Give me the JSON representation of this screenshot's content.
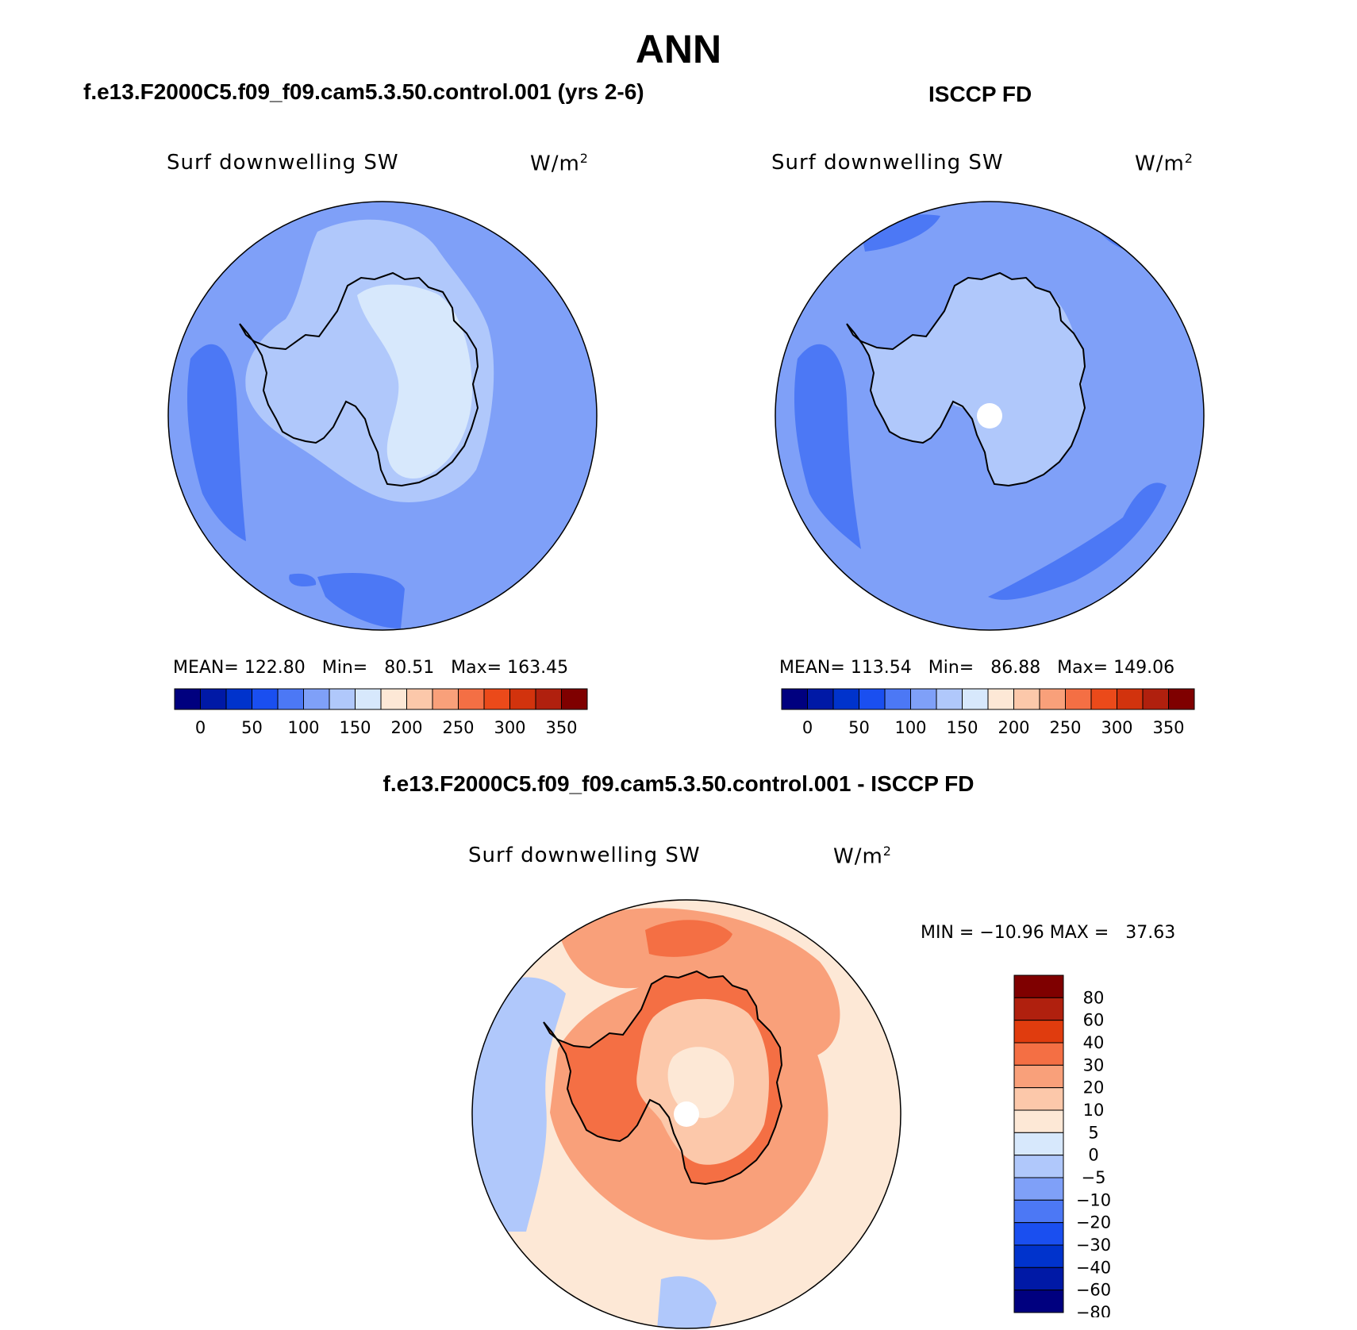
{
  "title": "ANN",
  "panels": {
    "left": {
      "subtitle": "f.e13.F2000C5.f09_f09.cam5.3.50.control.001 (yrs 2-6)",
      "variable": "Surf downwelling SW",
      "units_base": "W/m",
      "units_exp": "2",
      "stats": "MEAN= 122.80   Min=   80.51   Max= 163.45"
    },
    "right": {
      "subtitle": "ISCCP FD",
      "variable": "Surf downwelling SW",
      "units_base": "W/m",
      "units_exp": "2",
      "stats": "MEAN= 113.54   Min=   86.88   Max= 149.06"
    },
    "bottom": {
      "subtitle": "f.e13.F2000C5.f09_f09.cam5.3.50.control.001 - ISCCP FD",
      "variable": "Surf downwelling SW",
      "units_base": "W/m",
      "units_exp": "2",
      "stats": "MIN = −10.96 MAX =   37.63"
    }
  },
  "chart_data": [
    {
      "type": "heatmap",
      "name": "model",
      "projection": "south-polar stereographic",
      "colorbar": {
        "orientation": "horizontal",
        "colors": [
          "#00007f",
          "#0019a6",
          "#0033cc",
          "#1a4ff0",
          "#4c78f5",
          "#7fa0f8",
          "#b0c8fb",
          "#d7e8fc",
          "#fde8d6",
          "#fcc8aa",
          "#f9a07a",
          "#f46f44",
          "#eb4a1a",
          "#d2330d",
          "#b0200e",
          "#7f0000"
        ],
        "tick_labels": [
          "0",
          "50",
          "100",
          "150",
          "200",
          "250",
          "300",
          "350"
        ]
      },
      "region_values": {
        "ocean_far": 75,
        "ocean": 100,
        "ocean_near_coast": 125,
        "continent": 140,
        "continent_interior": 160
      },
      "mean": 122.8,
      "min": 80.51,
      "max": 163.45
    },
    {
      "type": "heatmap",
      "name": "obs",
      "projection": "south-polar stereographic",
      "colorbar": {
        "orientation": "horizontal",
        "colors": [
          "#00007f",
          "#0019a6",
          "#0033cc",
          "#1a4ff0",
          "#4c78f5",
          "#7fa0f8",
          "#b0c8fb",
          "#d7e8fc",
          "#fde8d6",
          "#fcc8aa",
          "#f9a07a",
          "#f46f44",
          "#eb4a1a",
          "#d2330d",
          "#b0200e",
          "#7f0000"
        ],
        "tick_labels": [
          "0",
          "50",
          "100",
          "150",
          "200",
          "250",
          "300",
          "350"
        ]
      },
      "region_values": {
        "ocean_far": 75,
        "ocean": 100,
        "continent": 125,
        "continent_interior": 140
      },
      "mean": 113.54,
      "min": 86.88,
      "max": 149.06
    },
    {
      "type": "heatmap",
      "name": "difference",
      "projection": "south-polar stereographic",
      "colorbar": {
        "orientation": "vertical",
        "colors": [
          "#7f0000",
          "#b0200e",
          "#e03c0e",
          "#f46f44",
          "#f9a07a",
          "#fcc8aa",
          "#fde8d6",
          "#d7e8fc",
          "#b0c8fb",
          "#7fa0f8",
          "#4c78f5",
          "#1a4ff0",
          "#0033cc",
          "#0019a6",
          "#00007f"
        ],
        "tick_labels": [
          "80",
          "60",
          "40",
          "30",
          "20",
          "10",
          "5",
          "0",
          "−5",
          "−10",
          "−20",
          "−30",
          "−40",
          "−60",
          "−80"
        ]
      },
      "region_values": {
        "ocean_west": -5,
        "ocean": 5,
        "ocean_north": 20,
        "coast_ring": 20,
        "continent_edge": 30,
        "continent": 10,
        "interior": 5
      },
      "min": -10.96,
      "max": 37.63
    }
  ]
}
